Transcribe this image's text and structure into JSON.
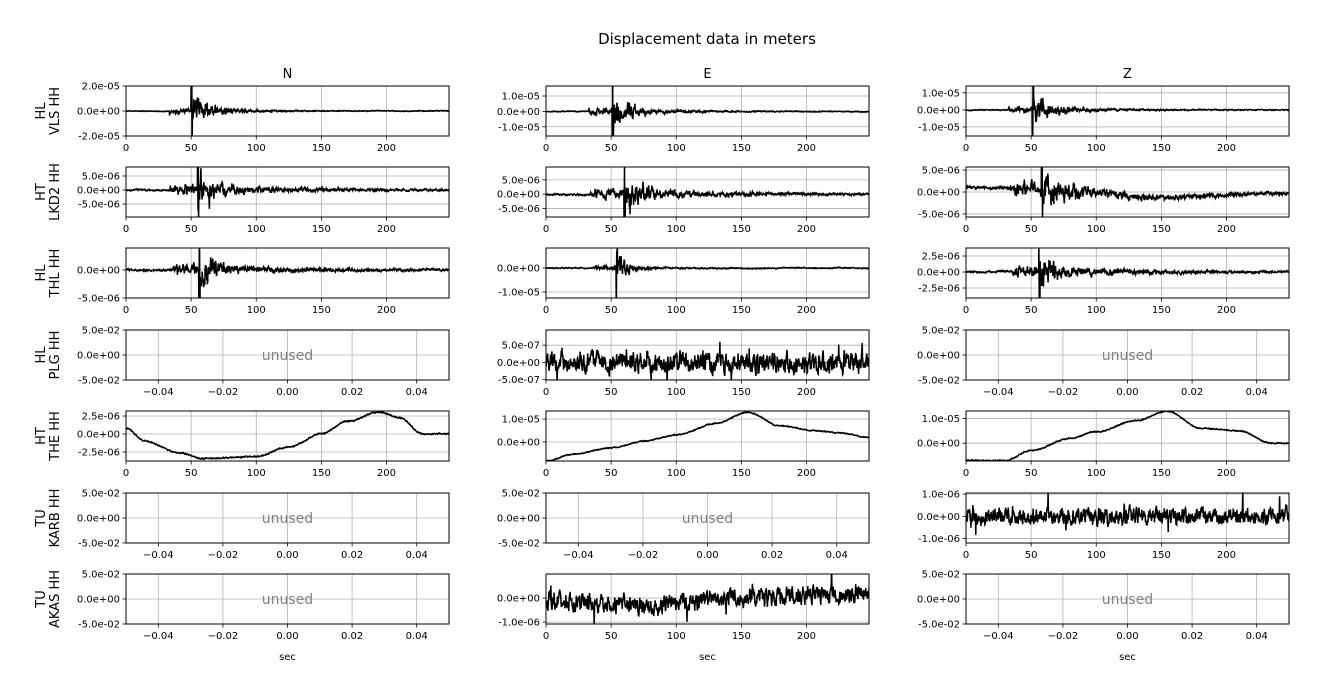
{
  "chart_data": {
    "type": "line",
    "title": "Displacement data in meters",
    "xlabel": "sec",
    "columns": [
      "N",
      "E",
      "Z"
    ],
    "grid": true,
    "rows": [
      {
        "label": [
          "HL",
          "VLS HH"
        ],
        "panels": [
          {
            "kind": "event",
            "ylim": [
              -2e-05,
              2e-05
            ],
            "yticks": [
              2e-05,
              0,
              -2e-05
            ],
            "ytick_labels": [
              "2.0e-05",
              "0.0e+00",
              "-2.0e-05"
            ],
            "onset": 33,
            "peak_time": 50,
            "peak_amplitude": 2.4e-05,
            "pre_amplitude": 4e-06,
            "decay": 14,
            "noise": 4e-07,
            "seed": 11
          },
          {
            "kind": "event",
            "ylim": [
              -1.6e-05,
              1.65e-05
            ],
            "yticks": [
              1e-05,
              0,
              -1e-05
            ],
            "ytick_labels": [
              "1.0e-05",
              "0.0e+00",
              "-1.0e-05"
            ],
            "onset": 33,
            "peak_time": 51,
            "peak_amplitude": 1.8e-05,
            "pre_amplitude": 4e-06,
            "decay": 14,
            "noise": 4e-07,
            "seed": 12
          },
          {
            "kind": "event",
            "ylim": [
              -1.53e-05,
              1.4e-05
            ],
            "yticks": [
              1e-05,
              0,
              -1e-05
            ],
            "ytick_labels": [
              "1.0e-05",
              "0.0e+00",
              "-1.0e-05"
            ],
            "onset": 33,
            "peak_time": 51,
            "peak_amplitude": 1.7e-05,
            "pre_amplitude": 3.5e-06,
            "decay": 14,
            "noise": 4e-07,
            "seed": 13
          }
        ]
      },
      {
        "label": [
          "HT",
          "LKD2 HH"
        ],
        "panels": [
          {
            "kind": "event",
            "ylim": [
              -9.6e-06,
              8.2e-06
            ],
            "yticks": [
              5e-06,
              0,
              -5e-06
            ],
            "ytick_labels": [
              "5.0e-06",
              "0.0e+00",
              "-5.0e-06"
            ],
            "onset": 34,
            "peak_time": 55,
            "peak_amplitude": 9e-06,
            "pre_amplitude": 3.5e-06,
            "decay": 22,
            "noise": 4e-07,
            "seed": 21
          },
          {
            "kind": "event",
            "ylim": [
              -8e-06,
              9.5e-06
            ],
            "yticks": [
              5e-06,
              0,
              -5e-06
            ],
            "ytick_labels": [
              "5.0e-06",
              "0.0e+00",
              "-5.0e-06"
            ],
            "onset": 34,
            "peak_time": 60,
            "peak_amplitude": 9e-06,
            "pre_amplitude": 3e-06,
            "decay": 22,
            "noise": 4e-07,
            "seed": 22
          },
          {
            "kind": "event",
            "ylim": [
              -5.7e-06,
              5.7e-06
            ],
            "yticks": [
              5e-06,
              0,
              -5e-06
            ],
            "ytick_labels": [
              "5.0e-06",
              "0.0e+00",
              "-5.0e-06"
            ],
            "onset": 34,
            "peak_time": 58,
            "peak_amplitude": 6.5e-06,
            "pre_amplitude": 2.5e-06,
            "decay": 25,
            "noise": 4e-07,
            "seed": 23,
            "baseline": [
              [
                0,
                1e-06
              ],
              [
                33,
                1e-06
              ],
              [
                100,
                0
              ],
              [
                140,
                -1.2e-06
              ],
              [
                248,
                -4e-07
              ]
            ]
          }
        ]
      },
      {
        "label": [
          "HL",
          "THL HH"
        ],
        "panels": [
          {
            "kind": "event",
            "ylim": [
              -5e-06,
              3.9e-06
            ],
            "yticks": [
              0,
              -5e-06
            ],
            "ytick_labels": [
              "0.0e+00",
              "-5.0e-06"
            ],
            "onset": 36,
            "peak_time": 56,
            "peak_amplitude": 5e-06,
            "pre_amplitude": 1.7e-06,
            "decay": 18,
            "noise": 2.5e-07,
            "seed": 31
          },
          {
            "kind": "event",
            "ylim": [
              -1.25e-05,
              8.3e-06
            ],
            "yticks": [
              0,
              -1e-05
            ],
            "ytick_labels": [
              "0.0e+00",
              "-1.0e-05"
            ],
            "onset": 36,
            "peak_time": 54,
            "peak_amplitude": 1e-05,
            "pre_amplitude": 1.2e-06,
            "decay": 10,
            "noise": 3e-07,
            "seed": 32
          },
          {
            "kind": "event",
            "ylim": [
              -4.06e-06,
              3.75e-06
            ],
            "yticks": [
              2.5e-06,
              0,
              -2.5e-06
            ],
            "ytick_labels": [
              "2.5e-06",
              "0.0e+00",
              "-2.5e-06"
            ],
            "onset": 35,
            "peak_time": 56,
            "peak_amplitude": 4e-06,
            "pre_amplitude": 1.8e-06,
            "decay": 18,
            "noise": 2e-07,
            "seed": 33
          }
        ]
      },
      {
        "label": [
          "HL",
          "PLG HH"
        ],
        "panels": [
          {
            "kind": "unused",
            "text": "unused"
          },
          {
            "kind": "noise",
            "ylim": [
              -5.1e-07,
              9.4e-07
            ],
            "yticks": [
              5e-07,
              0,
              -5e-07
            ],
            "ytick_labels": [
              "5.0e-07",
              "0.0e+00",
              "-5.0e-07"
            ],
            "noise": 2.6e-07,
            "seed": 42
          },
          {
            "kind": "unused",
            "text": "unused"
          }
        ]
      },
      {
        "label": [
          "HT",
          "THE HH"
        ],
        "panels": [
          {
            "kind": "drift",
            "ylim": [
              -3.75e-06,
              3.2e-06
            ],
            "yticks": [
              2.5e-06,
              0,
              -2.5e-06
            ],
            "ytick_labels": [
              "2.5e-06",
              "0.0e+00",
              "-2.5e-06"
            ],
            "noise": 1.2e-07,
            "seed": 51,
            "control": [
              [
                0,
                8e-07
              ],
              [
                15,
                -1e-06
              ],
              [
                40,
                -2.6e-06
              ],
              [
                60,
                -3.4e-06
              ],
              [
                100,
                -3.1e-06
              ],
              [
                125,
                -1.8e-06
              ],
              [
                150,
                0
              ],
              [
                170,
                1.8e-06
              ],
              [
                195,
                3.1e-06
              ],
              [
                210,
                2.3e-06
              ],
              [
                228,
                0
              ],
              [
                248,
                0
              ]
            ]
          },
          {
            "kind": "drift",
            "ylim": [
              -8.3e-06,
              1.35e-05
            ],
            "yticks": [
              1e-05,
              0
            ],
            "ytick_labels": [
              "1.0e-05",
              "0.0e+00"
            ],
            "noise": 3e-07,
            "seed": 52,
            "control": [
              [
                0,
                -8.3e-06
              ],
              [
                20,
                -5.5e-06
              ],
              [
                50,
                -2.5e-06
              ],
              [
                75,
                5e-07
              ],
              [
                100,
                3e-06
              ],
              [
                130,
                8e-06
              ],
              [
                155,
                1.3e-05
              ],
              [
                180,
                7e-06
              ],
              [
                205,
                5e-06
              ],
              [
                225,
                4e-06
              ],
              [
                248,
                2e-06
              ]
            ]
          },
          {
            "kind": "drift",
            "ylim": [
              -7.2e-06,
              1.3e-05
            ],
            "yticks": [
              1e-05,
              0
            ],
            "ytick_labels": [
              "1.0e-05",
              "0.0e+00"
            ],
            "noise": 3e-07,
            "seed": 53,
            "control": [
              [
                0,
                -7e-06
              ],
              [
                30,
                -7e-06
              ],
              [
                50,
                -3e-06
              ],
              [
                80,
                2e-06
              ],
              [
                100,
                4.5e-06
              ],
              [
                130,
                9e-06
              ],
              [
                155,
                1.3e-05
              ],
              [
                180,
                6e-06
              ],
              [
                210,
                5e-06
              ],
              [
                235,
                0
              ],
              [
                248,
                0
              ]
            ]
          }
        ]
      },
      {
        "label": [
          "TU",
          "KARB HH"
        ],
        "panels": [
          {
            "kind": "unused",
            "text": "unused"
          },
          {
            "kind": "unused",
            "text": "unused"
          },
          {
            "kind": "noise",
            "ylim": [
              -1.2e-06,
              1.05e-06
            ],
            "yticks": [
              1e-06,
              0,
              -1e-06
            ],
            "ytick_labels": [
              "1.0e-06",
              "0.0e+00",
              "-1.0e-06"
            ],
            "noise": 3.2e-07,
            "seed": 63
          }
        ]
      },
      {
        "label": [
          "TU",
          "AKAS HH"
        ],
        "panels": [
          {
            "kind": "unused",
            "text": "unused"
          },
          {
            "kind": "noise",
            "ylim": [
              -1.08e-06,
              1e-06
            ],
            "yticks": [
              0,
              -1e-06
            ],
            "ytick_labels": [
              "0.0e+00",
              "-1.0e-06"
            ],
            "noise": 3.2e-07,
            "seed": 72,
            "baseline": [
              [
                0,
                -1e-07
              ],
              [
                80,
                -3e-07
              ],
              [
                150,
                0
              ],
              [
                248,
                2e-07
              ]
            ]
          },
          {
            "kind": "unused",
            "text": "unused"
          }
        ]
      }
    ],
    "time_axis": {
      "xlim": [
        0,
        248
      ],
      "xticks": [
        0,
        50,
        100,
        150,
        200
      ],
      "xtick_labels": [
        "0",
        "50",
        "100",
        "150",
        "200"
      ]
    },
    "unused_axis": {
      "xlim": [
        -0.05,
        0.05
      ],
      "xticks": [
        -0.04,
        -0.02,
        0,
        0.02,
        0.04
      ],
      "xtick_labels": [
        "−0.04",
        "−0.02",
        "0.00",
        "0.02",
        "0.04"
      ],
      "ylim": [
        -0.05,
        0.05
      ],
      "yticks": [
        0.05,
        0,
        -0.05
      ],
      "ytick_labels": [
        "5.0e-02",
        "0.0e+00",
        "-5.0e-02"
      ]
    },
    "colors": {
      "line": "#000000",
      "grid": "#b0b0b0",
      "unused_text": "#808080"
    }
  }
}
